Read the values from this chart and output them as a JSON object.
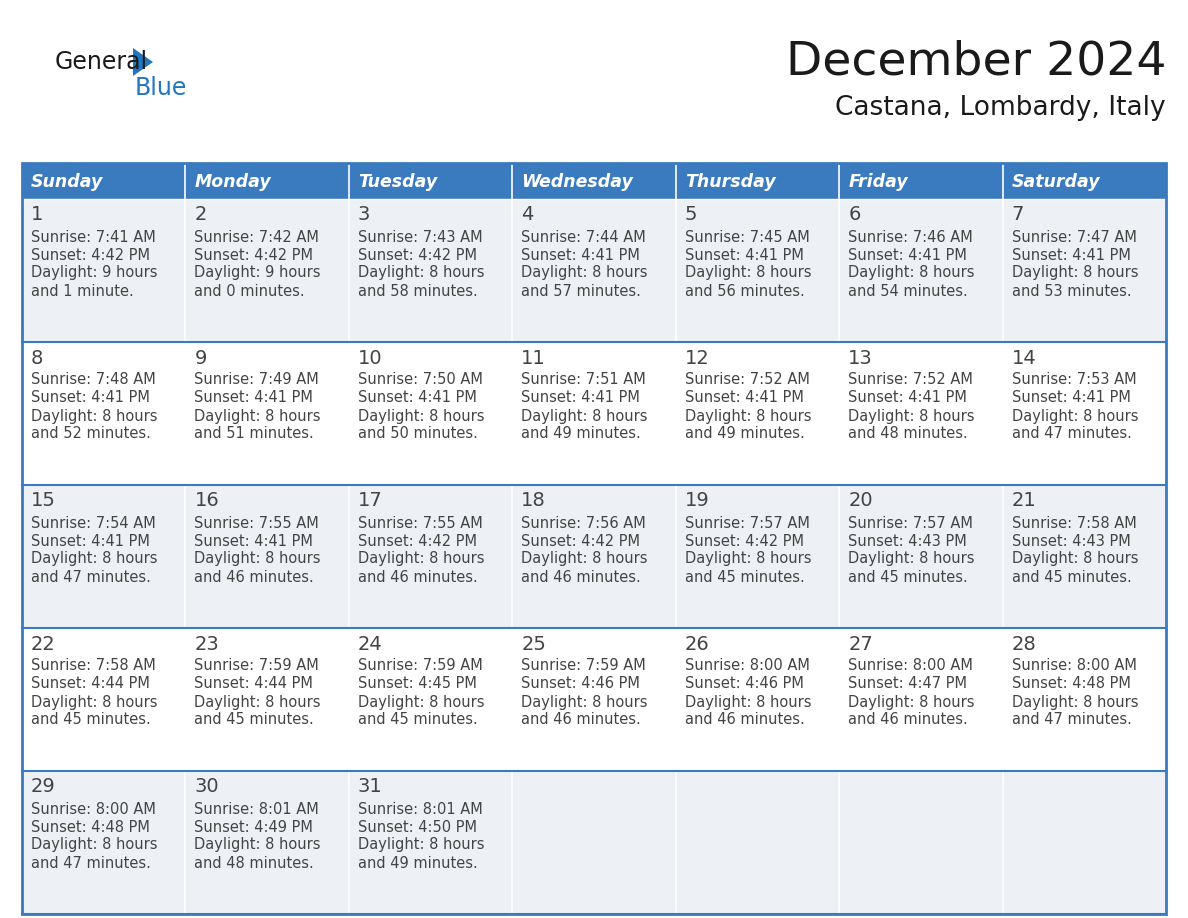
{
  "title": "December 2024",
  "subtitle": "Castana, Lombardy, Italy",
  "days_of_week": [
    "Sunday",
    "Monday",
    "Tuesday",
    "Wednesday",
    "Thursday",
    "Friday",
    "Saturday"
  ],
  "header_bg": "#3a7abf",
  "header_text": "#ffffff",
  "cell_bg_odd_row": "#edf1f5",
  "cell_bg_even_row": "#ffffff",
  "cell_border": "#3a7abf",
  "row_divider": "#3a7abf",
  "day_num_color": "#444444",
  "text_color": "#444444",
  "title_color": "#1a1a1a",
  "logo_general_color": "#1a1a1a",
  "logo_blue_color": "#2176c0",
  "days": [
    {
      "date": 1,
      "row": 0,
      "col": 0,
      "sunrise": "7:41 AM",
      "sunset": "4:42 PM",
      "daylight_h": "9 hours",
      "daylight_m": "and 1 minute."
    },
    {
      "date": 2,
      "row": 0,
      "col": 1,
      "sunrise": "7:42 AM",
      "sunset": "4:42 PM",
      "daylight_h": "9 hours",
      "daylight_m": "and 0 minutes."
    },
    {
      "date": 3,
      "row": 0,
      "col": 2,
      "sunrise": "7:43 AM",
      "sunset": "4:42 PM",
      "daylight_h": "8 hours",
      "daylight_m": "and 58 minutes."
    },
    {
      "date": 4,
      "row": 0,
      "col": 3,
      "sunrise": "7:44 AM",
      "sunset": "4:41 PM",
      "daylight_h": "8 hours",
      "daylight_m": "and 57 minutes."
    },
    {
      "date": 5,
      "row": 0,
      "col": 4,
      "sunrise": "7:45 AM",
      "sunset": "4:41 PM",
      "daylight_h": "8 hours",
      "daylight_m": "and 56 minutes."
    },
    {
      "date": 6,
      "row": 0,
      "col": 5,
      "sunrise": "7:46 AM",
      "sunset": "4:41 PM",
      "daylight_h": "8 hours",
      "daylight_m": "and 54 minutes."
    },
    {
      "date": 7,
      "row": 0,
      "col": 6,
      "sunrise": "7:47 AM",
      "sunset": "4:41 PM",
      "daylight_h": "8 hours",
      "daylight_m": "and 53 minutes."
    },
    {
      "date": 8,
      "row": 1,
      "col": 0,
      "sunrise": "7:48 AM",
      "sunset": "4:41 PM",
      "daylight_h": "8 hours",
      "daylight_m": "and 52 minutes."
    },
    {
      "date": 9,
      "row": 1,
      "col": 1,
      "sunrise": "7:49 AM",
      "sunset": "4:41 PM",
      "daylight_h": "8 hours",
      "daylight_m": "and 51 minutes."
    },
    {
      "date": 10,
      "row": 1,
      "col": 2,
      "sunrise": "7:50 AM",
      "sunset": "4:41 PM",
      "daylight_h": "8 hours",
      "daylight_m": "and 50 minutes."
    },
    {
      "date": 11,
      "row": 1,
      "col": 3,
      "sunrise": "7:51 AM",
      "sunset": "4:41 PM",
      "daylight_h": "8 hours",
      "daylight_m": "and 49 minutes."
    },
    {
      "date": 12,
      "row": 1,
      "col": 4,
      "sunrise": "7:52 AM",
      "sunset": "4:41 PM",
      "daylight_h": "8 hours",
      "daylight_m": "and 49 minutes."
    },
    {
      "date": 13,
      "row": 1,
      "col": 5,
      "sunrise": "7:52 AM",
      "sunset": "4:41 PM",
      "daylight_h": "8 hours",
      "daylight_m": "and 48 minutes."
    },
    {
      "date": 14,
      "row": 1,
      "col": 6,
      "sunrise": "7:53 AM",
      "sunset": "4:41 PM",
      "daylight_h": "8 hours",
      "daylight_m": "and 47 minutes."
    },
    {
      "date": 15,
      "row": 2,
      "col": 0,
      "sunrise": "7:54 AM",
      "sunset": "4:41 PM",
      "daylight_h": "8 hours",
      "daylight_m": "and 47 minutes."
    },
    {
      "date": 16,
      "row": 2,
      "col": 1,
      "sunrise": "7:55 AM",
      "sunset": "4:41 PM",
      "daylight_h": "8 hours",
      "daylight_m": "and 46 minutes."
    },
    {
      "date": 17,
      "row": 2,
      "col": 2,
      "sunrise": "7:55 AM",
      "sunset": "4:42 PM",
      "daylight_h": "8 hours",
      "daylight_m": "and 46 minutes."
    },
    {
      "date": 18,
      "row": 2,
      "col": 3,
      "sunrise": "7:56 AM",
      "sunset": "4:42 PM",
      "daylight_h": "8 hours",
      "daylight_m": "and 46 minutes."
    },
    {
      "date": 19,
      "row": 2,
      "col": 4,
      "sunrise": "7:57 AM",
      "sunset": "4:42 PM",
      "daylight_h": "8 hours",
      "daylight_m": "and 45 minutes."
    },
    {
      "date": 20,
      "row": 2,
      "col": 5,
      "sunrise": "7:57 AM",
      "sunset": "4:43 PM",
      "daylight_h": "8 hours",
      "daylight_m": "and 45 minutes."
    },
    {
      "date": 21,
      "row": 2,
      "col": 6,
      "sunrise": "7:58 AM",
      "sunset": "4:43 PM",
      "daylight_h": "8 hours",
      "daylight_m": "and 45 minutes."
    },
    {
      "date": 22,
      "row": 3,
      "col": 0,
      "sunrise": "7:58 AM",
      "sunset": "4:44 PM",
      "daylight_h": "8 hours",
      "daylight_m": "and 45 minutes."
    },
    {
      "date": 23,
      "row": 3,
      "col": 1,
      "sunrise": "7:59 AM",
      "sunset": "4:44 PM",
      "daylight_h": "8 hours",
      "daylight_m": "and 45 minutes."
    },
    {
      "date": 24,
      "row": 3,
      "col": 2,
      "sunrise": "7:59 AM",
      "sunset": "4:45 PM",
      "daylight_h": "8 hours",
      "daylight_m": "and 45 minutes."
    },
    {
      "date": 25,
      "row": 3,
      "col": 3,
      "sunrise": "7:59 AM",
      "sunset": "4:46 PM",
      "daylight_h": "8 hours",
      "daylight_m": "and 46 minutes."
    },
    {
      "date": 26,
      "row": 3,
      "col": 4,
      "sunrise": "8:00 AM",
      "sunset": "4:46 PM",
      "daylight_h": "8 hours",
      "daylight_m": "and 46 minutes."
    },
    {
      "date": 27,
      "row": 3,
      "col": 5,
      "sunrise": "8:00 AM",
      "sunset": "4:47 PM",
      "daylight_h": "8 hours",
      "daylight_m": "and 46 minutes."
    },
    {
      "date": 28,
      "row": 3,
      "col": 6,
      "sunrise": "8:00 AM",
      "sunset": "4:48 PM",
      "daylight_h": "8 hours",
      "daylight_m": "and 47 minutes."
    },
    {
      "date": 29,
      "row": 4,
      "col": 0,
      "sunrise": "8:00 AM",
      "sunset": "4:48 PM",
      "daylight_h": "8 hours",
      "daylight_m": "and 47 minutes."
    },
    {
      "date": 30,
      "row": 4,
      "col": 1,
      "sunrise": "8:01 AM",
      "sunset": "4:49 PM",
      "daylight_h": "8 hours",
      "daylight_m": "and 48 minutes."
    },
    {
      "date": 31,
      "row": 4,
      "col": 2,
      "sunrise": "8:01 AM",
      "sunset": "4:50 PM",
      "daylight_h": "8 hours",
      "daylight_m": "and 49 minutes."
    }
  ]
}
